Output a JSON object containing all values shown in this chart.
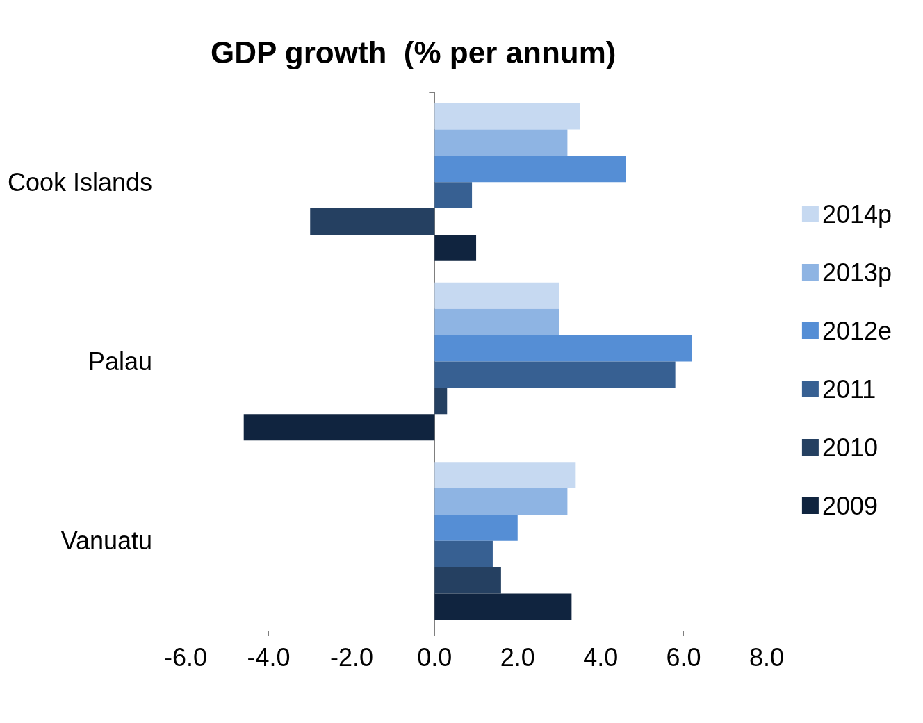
{
  "chart_data": {
    "type": "bar",
    "orientation": "horizontal",
    "title": "GDP growth  (% per annum)",
    "categories": [
      "Cook Islands",
      "Palau",
      "Vanuatu"
    ],
    "series": [
      {
        "name": "2014p",
        "color": "#c6d9f1",
        "values": [
          3.5,
          3.0,
          3.4
        ]
      },
      {
        "name": "2013p",
        "color": "#8eb4e3",
        "values": [
          3.2,
          3.0,
          3.2
        ]
      },
      {
        "name": "2012e",
        "color": "#558ed5",
        "values": [
          4.6,
          6.2,
          2.0
        ]
      },
      {
        "name": "2011",
        "color": "#376092",
        "values": [
          0.9,
          5.8,
          1.4
        ]
      },
      {
        "name": "2010",
        "color": "#254061",
        "values": [
          -3.0,
          0.3,
          1.6
        ]
      },
      {
        "name": "2009",
        "color": "#10243f",
        "values": [
          1.0,
          -4.6,
          3.3
        ]
      }
    ],
    "xlim": [
      -6,
      8
    ],
    "xticks": [
      {
        "value": -6,
        "label": "-6.0"
      },
      {
        "value": -4,
        "label": "-4.0"
      },
      {
        "value": -2,
        "label": "-2.0"
      },
      {
        "value": 0,
        "label": "0.0"
      },
      {
        "value": 2,
        "label": "2.0"
      },
      {
        "value": 4,
        "label": "4.0"
      },
      {
        "value": 6,
        "label": "6.0"
      },
      {
        "value": 8,
        "label": "8.0"
      }
    ],
    "legend": "right"
  }
}
